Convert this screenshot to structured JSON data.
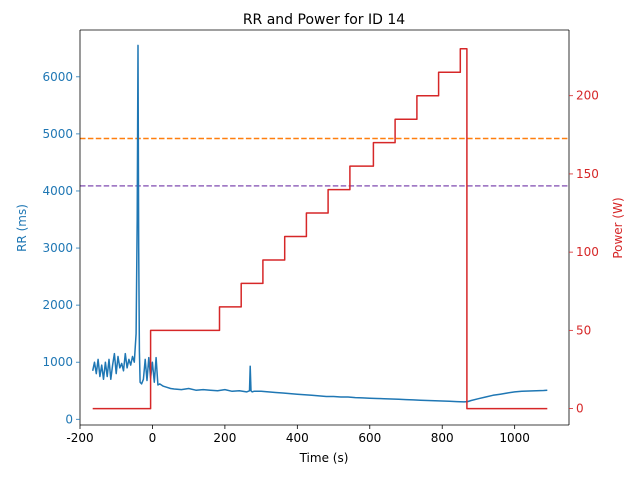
{
  "chart_data": {
    "type": "line",
    "title": "RR and Power for ID 14",
    "xlabel": "Time (s)",
    "ylabel_left": "RR (ms)",
    "ylabel_right": "Power (W)",
    "xlim": [
      -200,
      1150
    ],
    "ylim_left": [
      -100,
      6820
    ],
    "ylim_right": [
      -10.5,
      242
    ],
    "xticks": [
      -200,
      0,
      200,
      400,
      600,
      800,
      1000
    ],
    "yticks_left": [
      0,
      1000,
      2000,
      3000,
      4000,
      5000,
      6000
    ],
    "yticks_right": [
      0,
      50,
      100,
      150,
      200
    ],
    "grid": false,
    "colors": {
      "rr": "#1f77b4",
      "power": "#d62728",
      "ref_orange": "#ff7f0e",
      "ref_purple": "#9467bd",
      "axis": "#000000"
    },
    "reference_lines": [
      {
        "axis": "left",
        "y": 4920,
        "color": "#ff7f0e",
        "style": "dashed"
      },
      {
        "axis": "left",
        "y": 4090,
        "color": "#9467bd",
        "style": "dashed"
      }
    ],
    "series": [
      {
        "axis": "left",
        "color": "#1f77b4",
        "x": [
          -165,
          -160,
          -155,
          -150,
          -145,
          -140,
          -135,
          -130,
          -125,
          -120,
          -115,
          -110,
          -105,
          -100,
          -95,
          -90,
          -85,
          -80,
          -75,
          -70,
          -65,
          -60,
          -55,
          -50,
          -45,
          -42,
          -40,
          -38,
          -36,
          -34,
          -30,
          -25,
          -20,
          -15,
          -10,
          -5,
          0,
          5,
          10,
          15,
          20,
          30,
          40,
          50,
          60,
          80,
          100,
          120,
          140,
          160,
          180,
          200,
          220,
          240,
          260,
          268,
          270,
          272,
          275,
          280,
          300,
          320,
          340,
          360,
          380,
          400,
          420,
          440,
          460,
          480,
          500,
          520,
          540,
          560,
          580,
          600,
          620,
          640,
          660,
          680,
          700,
          720,
          740,
          760,
          780,
          800,
          820,
          840,
          860,
          870,
          880,
          900,
          920,
          940,
          960,
          980,
          1000,
          1020,
          1040,
          1060,
          1080,
          1090
        ],
        "y": [
          850,
          1000,
          800,
          1050,
          750,
          950,
          700,
          1000,
          750,
          1050,
          700,
          950,
          1150,
          800,
          1100,
          900,
          980,
          850,
          1150,
          900,
          1050,
          950,
          1100,
          1000,
          1500,
          3500,
          6550,
          3000,
          1200,
          650,
          620,
          700,
          1050,
          680,
          1080,
          720,
          1000,
          650,
          1080,
          600,
          620,
          580,
          560,
          540,
          530,
          520,
          540,
          510,
          520,
          510,
          500,
          520,
          490,
          500,
          480,
          500,
          930,
          500,
          480,
          490,
          490,
          480,
          470,
          460,
          450,
          440,
          430,
          420,
          410,
          400,
          400,
          390,
          390,
          380,
          375,
          370,
          365,
          360,
          355,
          350,
          345,
          340,
          335,
          330,
          325,
          320,
          315,
          310,
          305,
          310,
          330,
          360,
          390,
          420,
          440,
          460,
          480,
          490,
          495,
          500,
          505,
          510
        ]
      },
      {
        "axis": "right",
        "color": "#d62728",
        "step": true,
        "x": [
          -165,
          -5,
          -5,
          185,
          185,
          245,
          245,
          305,
          305,
          365,
          365,
          425,
          425,
          485,
          485,
          545,
          545,
          610,
          610,
          670,
          670,
          730,
          730,
          790,
          790,
          850,
          850,
          868,
          868,
          1090
        ],
        "y": [
          0,
          0,
          50,
          50,
          65,
          65,
          80,
          80,
          95,
          95,
          110,
          110,
          125,
          125,
          140,
          140,
          155,
          155,
          170,
          170,
          185,
          185,
          200,
          200,
          215,
          215,
          230,
          230,
          0,
          0
        ]
      }
    ]
  }
}
